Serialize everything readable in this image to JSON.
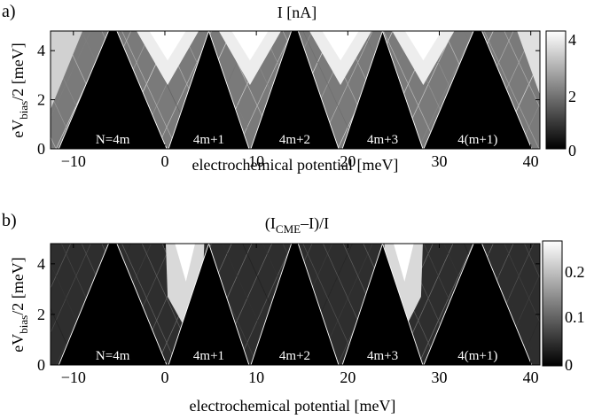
{
  "panels": [
    {
      "letter": "a)",
      "title": "I [nA]",
      "xlabel": "electrochemical potential [meV]",
      "ylabel_pre": "eV",
      "ylabel_sub": "bias",
      "ylabel_post": "/2 [meV]",
      "colorbar_ticks": [
        "0",
        "2",
        "4"
      ]
    },
    {
      "letter": "b)",
      "title_pre": "(I",
      "title_sub": "CME",
      "title_post": "–I)/I",
      "xlabel": "electrochemical potential [meV]",
      "ylabel_pre": "eV",
      "ylabel_sub": "bias",
      "ylabel_post": "/2 [meV]",
      "colorbar_ticks": [
        "0",
        "0.1",
        "0.2"
      ]
    }
  ],
  "chart_data": [
    {
      "type": "heatmap",
      "title": "I [nA]",
      "xlabel": "electrochemical potential [meV]",
      "ylabel": "eV_bias/2 [meV]",
      "xlim": [
        -12.5,
        41
      ],
      "ylim": [
        0,
        4.8
      ],
      "x_ticks": [
        -10,
        0,
        10,
        20,
        30,
        40
      ],
      "x_tick_labels": [
        "−10",
        "0",
        "10",
        "20",
        "30",
        "40"
      ],
      "y_ticks": [
        0,
        2,
        4
      ],
      "y_tick_labels": [
        "0",
        "2",
        "4"
      ],
      "colormap": "gray",
      "color_range": [
        0,
        4.2
      ],
      "colorbar_ticks": [
        0,
        2,
        4
      ],
      "diamond_apex_x": [
        -6,
        0.5,
        4.5,
        9.5,
        14,
        19,
        24,
        28.5,
        34.5,
        40
      ],
      "blockade_regions": [
        {
          "label": "N=4m",
          "center": -5.7,
          "half_width": 5.9,
          "height": 5.2
        },
        {
          "label": "4m+1",
          "center": 4.8,
          "half_width": 4.4,
          "height": 4.8
        },
        {
          "label": "4m+2",
          "center": 14.2,
          "half_width": 4.8,
          "height": 5.2
        },
        {
          "label": "4m+3",
          "center": 23.8,
          "half_width": 4.4,
          "height": 4.8
        },
        {
          "label": "4(m+1)",
          "center": 34.2,
          "half_width": 5.9,
          "height": 5.2
        }
      ]
    },
    {
      "type": "heatmap",
      "title": "(I_CME–I)/I",
      "xlabel": "electrochemical potential [meV]",
      "ylabel": "eV_bias/2 [meV]",
      "xlim": [
        -12.5,
        41
      ],
      "ylim": [
        0,
        4.8
      ],
      "x_ticks": [
        -10,
        0,
        10,
        20,
        30,
        40
      ],
      "x_tick_labels": [
        "−10",
        "0",
        "10",
        "20",
        "30",
        "40"
      ],
      "y_ticks": [
        0,
        2,
        4
      ],
      "y_tick_labels": [
        "0",
        "2",
        "4"
      ],
      "colormap": "gray",
      "color_range": [
        0,
        0.27
      ],
      "colorbar_ticks": [
        0,
        0.1,
        0.2
      ],
      "blockade_regions": [
        {
          "label": "N=4m",
          "center": -5.7,
          "half_width": 5.9,
          "height": 5.2
        },
        {
          "label": "4m+1",
          "center": 4.8,
          "half_width": 4.4,
          "height": 4.8
        },
        {
          "label": "4m+2",
          "center": 14.2,
          "half_width": 4.8,
          "height": 5.2
        },
        {
          "label": "4m+3",
          "center": 23.8,
          "half_width": 4.4,
          "height": 4.8
        },
        {
          "label": "4(m+1)",
          "center": 34.2,
          "half_width": 5.9,
          "height": 5.2
        }
      ],
      "bright_spots": [
        {
          "x": 2.3,
          "y": 3.3,
          "value": 0.27
        },
        {
          "x": 26.2,
          "y": 3.3,
          "value": 0.27
        }
      ]
    }
  ]
}
